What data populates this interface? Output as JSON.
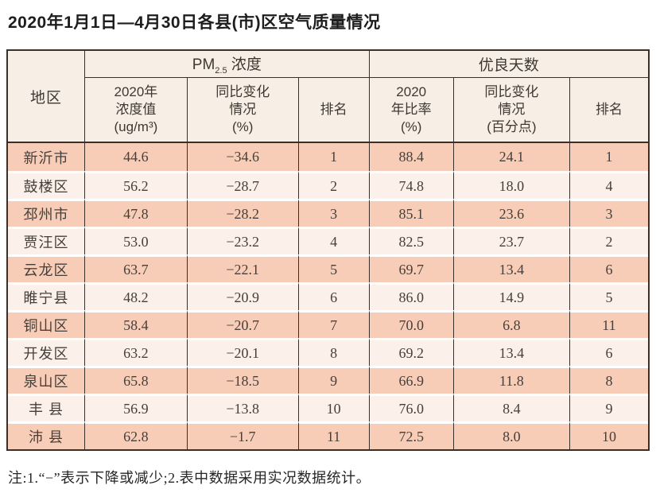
{
  "page": {
    "title": "2020年1月1日—4月30日各县(市)区空气质量情况",
    "note": "注:1.“−”表示下降或减少;2.表中数据采用实况数据统计。"
  },
  "colors": {
    "row_salmon": "#f8cdb8",
    "row_light": "#fcf0ea",
    "header_cream": "#f7eee5",
    "border_dark": "#38302a"
  },
  "table": {
    "region_header": "地区",
    "pm25_group": {
      "prefix": "PM",
      "sub": "2.5",
      "suffix": " 浓度"
    },
    "good_days_group": "优良天数",
    "sub_headers": [
      "2020年\n浓度值\n(ug/m³)",
      "同比变化\n情况\n(%)",
      "排名",
      "2020\n年比率\n(%)",
      "同比变化\n情况\n(百分点)",
      "排名"
    ],
    "rows": [
      [
        "新沂市",
        "44.6",
        "−34.6",
        "1",
        "88.4",
        "24.1",
        "1"
      ],
      [
        "鼓楼区",
        "56.2",
        "−28.7",
        "2",
        "74.8",
        "18.0",
        "4"
      ],
      [
        "邳州市",
        "47.8",
        "−28.2",
        "3",
        "85.1",
        "23.6",
        "3"
      ],
      [
        "贾汪区",
        "53.0",
        "−23.2",
        "4",
        "82.5",
        "23.7",
        "2"
      ],
      [
        "云龙区",
        "63.7",
        "−22.1",
        "5",
        "69.7",
        "13.4",
        "6"
      ],
      [
        "睢宁县",
        "48.2",
        "−20.9",
        "6",
        "86.0",
        "14.9",
        "5"
      ],
      [
        "铜山区",
        "58.4",
        "−20.7",
        "7",
        "70.0",
        "6.8",
        "11"
      ],
      [
        "开发区",
        "63.2",
        "−20.1",
        "8",
        "69.2",
        "13.4",
        "6"
      ],
      [
        "泉山区",
        "65.8",
        "−18.5",
        "9",
        "66.9",
        "11.8",
        "8"
      ],
      [
        "丰 县",
        "56.9",
        "−13.8",
        "10",
        "76.0",
        "8.4",
        "9"
      ],
      [
        "沛 县",
        "62.8",
        "−1.7",
        "11",
        "72.5",
        "8.0",
        "10"
      ]
    ]
  }
}
